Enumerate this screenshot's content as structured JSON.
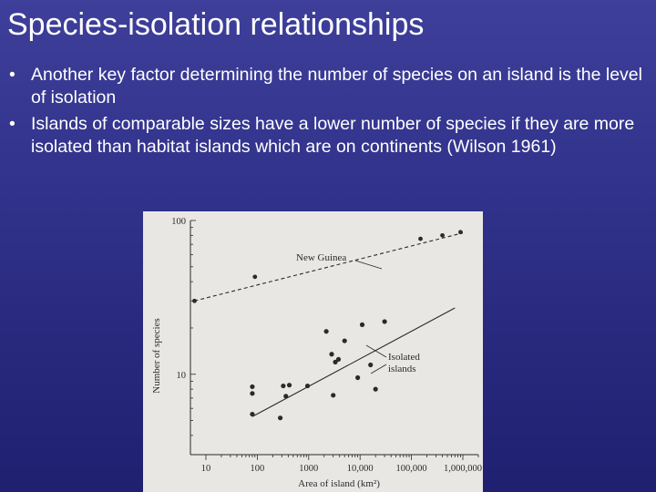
{
  "slide": {
    "title": "Species-isolation relationships",
    "bullets": [
      "Another key factor determining the number of species on an island is the level of isolation",
      "Islands of comparable sizes have a lower number of species if they are more isolated than habitat islands which are on continents (Wilson 1961)"
    ],
    "colors": {
      "background": "#2f3088",
      "text": "#ffffff",
      "figure_bg": "#e9e7e4",
      "ink": "#2a2a2a"
    }
  },
  "chart_data": {
    "type": "scatter",
    "xlabel": "Area of island (km²)",
    "ylabel": "Number of species",
    "x_scale": "log",
    "y_scale": "log",
    "xlim": [
      5,
      2000000
    ],
    "ylim": [
      3,
      100
    ],
    "x_ticks": [
      {
        "value": 10,
        "label": "10"
      },
      {
        "value": 100,
        "label": "100"
      },
      {
        "value": 1000,
        "label": "1000"
      },
      {
        "value": 10000,
        "label": "10,000"
      },
      {
        "value": 100000,
        "label": "100,000"
      },
      {
        "value": 1000000,
        "label": "1,000,000"
      }
    ],
    "y_ticks": [
      {
        "value": 10,
        "label": "10"
      },
      {
        "value": 100,
        "label": "100"
      }
    ],
    "series": [
      {
        "name": "New Guinea",
        "line_style": "dashed",
        "points": [
          {
            "x": 6,
            "y": 30
          },
          {
            "x": 90,
            "y": 43
          },
          {
            "x": 150000,
            "y": 76
          },
          {
            "x": 400000,
            "y": 80
          },
          {
            "x": 900000,
            "y": 84
          }
        ],
        "fit": {
          "x": [
            6,
            1000000
          ],
          "y": [
            30,
            83
          ]
        }
      },
      {
        "name": "Isolated islands",
        "line_style": "solid",
        "points": [
          {
            "x": 80,
            "y": 5.5
          },
          {
            "x": 80,
            "y": 7.5
          },
          {
            "x": 80,
            "y": 8.3
          },
          {
            "x": 280,
            "y": 5.2
          },
          {
            "x": 320,
            "y": 8.4
          },
          {
            "x": 360,
            "y": 7.2
          },
          {
            "x": 420,
            "y": 8.5
          },
          {
            "x": 950,
            "y": 8.4
          },
          {
            "x": 2200,
            "y": 19
          },
          {
            "x": 2800,
            "y": 13.5
          },
          {
            "x": 3000,
            "y": 7.3
          },
          {
            "x": 3300,
            "y": 12
          },
          {
            "x": 3800,
            "y": 12.5
          },
          {
            "x": 5000,
            "y": 16.5
          },
          {
            "x": 9000,
            "y": 9.5
          },
          {
            "x": 11000,
            "y": 21
          },
          {
            "x": 16000,
            "y": 11.5
          },
          {
            "x": 20000,
            "y": 8
          },
          {
            "x": 30000,
            "y": 22
          }
        ],
        "fit": {
          "x": [
            80,
            700000
          ],
          "y": [
            5.3,
            27
          ]
        }
      }
    ],
    "annotations": [
      {
        "text": "New Guinea",
        "series": "New Guinea"
      },
      {
        "text": "Isolated islands",
        "series": "Isolated islands"
      }
    ],
    "grid": false,
    "legend": "none"
  }
}
